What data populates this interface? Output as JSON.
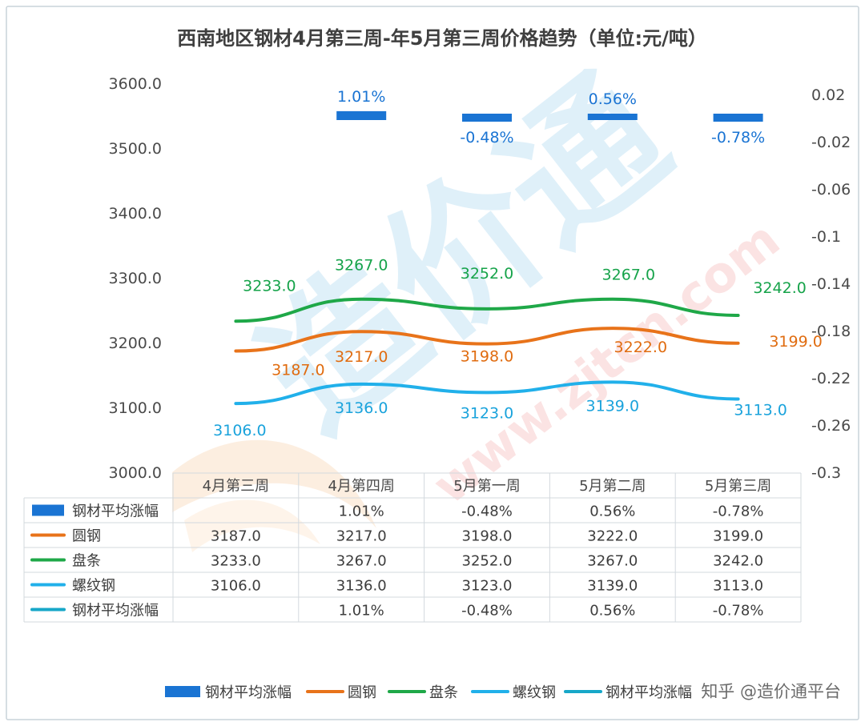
{
  "chart_data": {
    "type": "line",
    "title": "西南地区钢材4月第三周-年5月第三周价格趋势（单位:元/吨）",
    "categories": [
      "4月第三周",
      "4月第四周",
      "5月第一周",
      "5月第二周",
      "5月第三周"
    ],
    "y_left": {
      "ticks": [
        "3600.0",
        "3500.0",
        "3400.0",
        "3300.0",
        "3200.0",
        "3100.0",
        "3000.0"
      ],
      "range": [
        3000,
        3600
      ]
    },
    "y_right": {
      "ticks": [
        "0.02",
        "-0.02",
        "-0.06",
        "-0.1",
        "-0.14",
        "-0.18",
        "-0.22",
        "-0.26",
        "-0.3"
      ],
      "range": [
        -0.3,
        0.02
      ]
    },
    "series": [
      {
        "name": "钢材平均涨幅",
        "type": "bar",
        "axis": "right",
        "color": "#1a74d3",
        "values": [
          null,
          0.0101,
          -0.0048,
          0.0056,
          -0.0078
        ],
        "labels": [
          "",
          "1.01%",
          "-0.48%",
          "0.56%",
          "-0.78%"
        ],
        "label_color": "#1a74d3"
      },
      {
        "name": "圆钢",
        "type": "line",
        "axis": "left",
        "color": "#e8731a",
        "values": [
          3187.0,
          3217.0,
          3198.0,
          3222.0,
          3199.0
        ],
        "labels": [
          "3187.0",
          "3217.0",
          "3198.0",
          "3222.0",
          "3199.0"
        ],
        "label_color": "#e06c10"
      },
      {
        "name": "盘条",
        "type": "line",
        "axis": "left",
        "color": "#1fa848",
        "values": [
          3233.0,
          3267.0,
          3252.0,
          3267.0,
          3242.0
        ],
        "labels": [
          "3233.0",
          "3267.0",
          "3252.0",
          "3267.0",
          "3242.0"
        ],
        "label_color": "#16a34a"
      },
      {
        "name": "螺纹钢",
        "type": "line",
        "axis": "left",
        "color": "#21b0ea",
        "values": [
          3106.0,
          3136.0,
          3123.0,
          3139.0,
          3113.0
        ],
        "labels": [
          "3106.0",
          "3136.0",
          "3123.0",
          "3139.0",
          "3113.0"
        ],
        "label_color": "#1aa3dc"
      },
      {
        "name": "钢材平均涨幅",
        "type": "line",
        "axis": "right",
        "color": "#17a7c8",
        "values": [
          null,
          0.0101,
          -0.0048,
          0.0056,
          -0.0078
        ],
        "labels": [
          "",
          "1.01%",
          "-0.48%",
          "0.56%",
          "-0.78%"
        ],
        "label_color": "#17a7c8"
      }
    ],
    "table_rows": [
      {
        "name": "钢材平均涨幅",
        "cells": [
          "",
          "1.01%",
          "-0.48%",
          "0.56%",
          "-0.78%"
        ]
      },
      {
        "name": "圆钢",
        "cells": [
          "3187.0",
          "3217.0",
          "3198.0",
          "3222.0",
          "3199.0"
        ]
      },
      {
        "name": "盘条",
        "cells": [
          "3233.0",
          "3267.0",
          "3252.0",
          "3267.0",
          "3242.0"
        ]
      },
      {
        "name": "螺纹钢",
        "cells": [
          "3106.0",
          "3136.0",
          "3123.0",
          "3139.0",
          "3113.0"
        ]
      },
      {
        "name": "钢材平均涨幅",
        "cells": [
          "",
          "1.01%",
          "-0.48%",
          "0.56%",
          "-0.78%"
        ]
      }
    ],
    "legend_position": "bottom",
    "grid": false
  },
  "watermark": {
    "brand": "造价通",
    "url": "www.zjtcn.com"
  },
  "footer_credit": "知乎 @造价通平台"
}
